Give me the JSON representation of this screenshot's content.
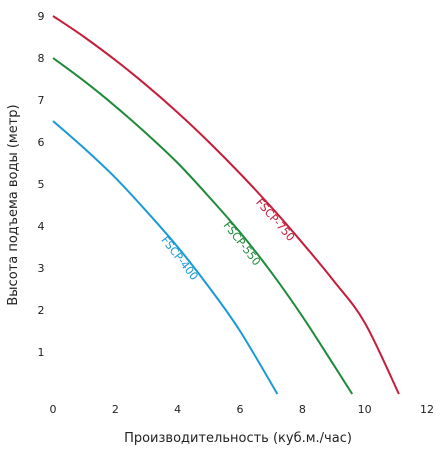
{
  "chart_data": {
    "type": "line",
    "title": "",
    "xlabel": "Производительность (куб.м./час)",
    "ylabel": "Высота подъема воды (метр)",
    "xlim": [
      0,
      12
    ],
    "ylim": [
      0,
      9
    ],
    "x_ticks": [
      "0",
      "2",
      "4",
      "6",
      "8",
      "10",
      "12"
    ],
    "y_ticks": [
      "1",
      "2",
      "3",
      "4",
      "5",
      "6",
      "7",
      "8",
      "9"
    ],
    "grid": false,
    "legend": "none (series labelled on lines)",
    "series": [
      {
        "name": "FSCP-750",
        "color": "#c41e3a",
        "x": [
          0,
          1,
          2,
          3,
          4,
          5,
          6,
          7,
          8,
          9,
          10,
          11.1
        ],
        "y": [
          9.0,
          8.5,
          7.95,
          7.35,
          6.7,
          6.0,
          5.25,
          4.45,
          3.6,
          2.7,
          1.7,
          0.0
        ]
      },
      {
        "name": "FSCP-550",
        "color": "#1e8a3a",
        "x": [
          0,
          1,
          2,
          3,
          4,
          5,
          6,
          7,
          8,
          9,
          9.6
        ],
        "y": [
          8.0,
          7.45,
          6.85,
          6.2,
          5.5,
          4.7,
          3.85,
          2.9,
          1.85,
          0.7,
          0.0
        ]
      },
      {
        "name": "FSCP-400",
        "color": "#1a9ad6",
        "x": [
          0,
          1,
          2,
          3,
          4,
          5,
          6,
          7.2
        ],
        "y": [
          6.5,
          5.85,
          5.15,
          4.35,
          3.5,
          2.55,
          1.5,
          0.0
        ]
      }
    ]
  }
}
